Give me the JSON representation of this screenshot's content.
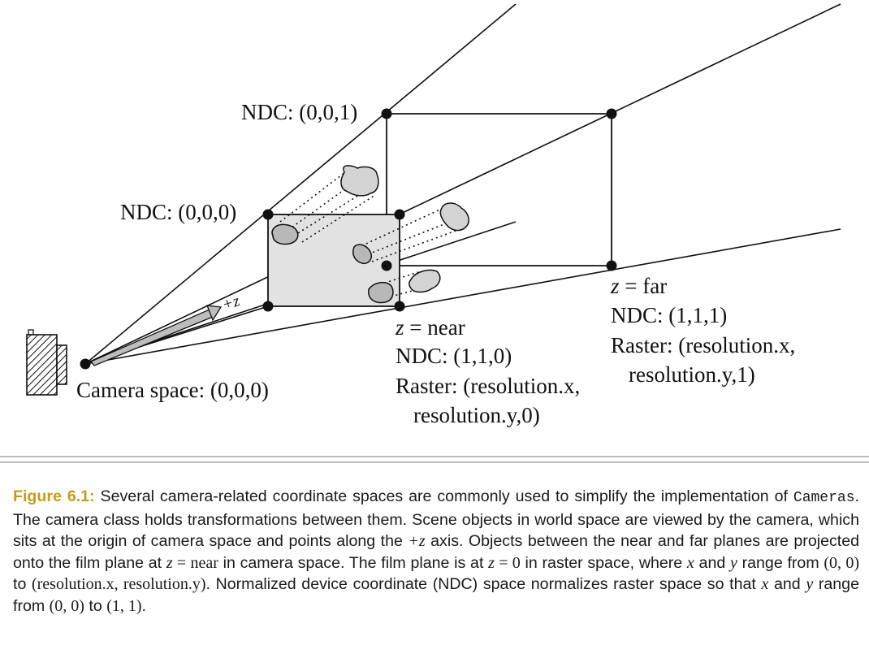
{
  "diagram": {
    "labels": {
      "ndc_001": "NDC: (0,0,1)",
      "ndc_000": "NDC: (0,0,0)",
      "z_axis": "+z",
      "camera_space": "Camera space: (0,0,0)",
      "near_z": "z",
      "near_eq": " = near",
      "near_ndc": "NDC: (1,1,0)",
      "near_raster_1": "Raster: (resolution.x,",
      "near_raster_2": "resolution.y,0)",
      "far_z": "z",
      "far_eq": " = far",
      "far_ndc": "NDC: (1,1,1)",
      "far_raster_1": "Raster: (resolution.x,",
      "far_raster_2": "resolution.y,1)"
    },
    "colors": {
      "line": "#111111",
      "near_plane_fill": "#e2e2e2",
      "object_fill": "#d4d4d4",
      "projected_fill": "#b8b8b8"
    }
  },
  "caption": {
    "figure_label": "Figure 6.1:",
    "t1": " Several camera-related coordinate spaces are commonly used to simplify the implementation of ",
    "t1_code": "Cameras",
    "t2": ". The camera class holds transformations between them. Scene objects in world space are viewed by the camera, which sits at the origin of camera space and points along the ",
    "t2_math": "+z",
    "t3": " axis. Objects between the near and far planes are projected onto the film plane at ",
    "t3_math_z": "z",
    "t3_math_rest": " = near",
    "t4": " in camera space. The film plane is at ",
    "t4_math_z": "z",
    "t4_math_rest": " = 0",
    "t5": " in raster space, where ",
    "t5_x": "x",
    "t6": " and ",
    "t6_y": "y",
    "t7": " range from ",
    "t7_m1": "(0, 0)",
    "t8": " to ",
    "t8_m2": "(resolution.x, resolution.y)",
    "t9": ". Normalized device coordinate (NDC) space normalizes raster space so that ",
    "t9_x": "x",
    "t10": " and ",
    "t10_y": "y",
    "t11": " range from ",
    "t11_m1": "(0, 0)",
    "t12": " to ",
    "t12_m2": "(1, 1)",
    "t13": "."
  }
}
